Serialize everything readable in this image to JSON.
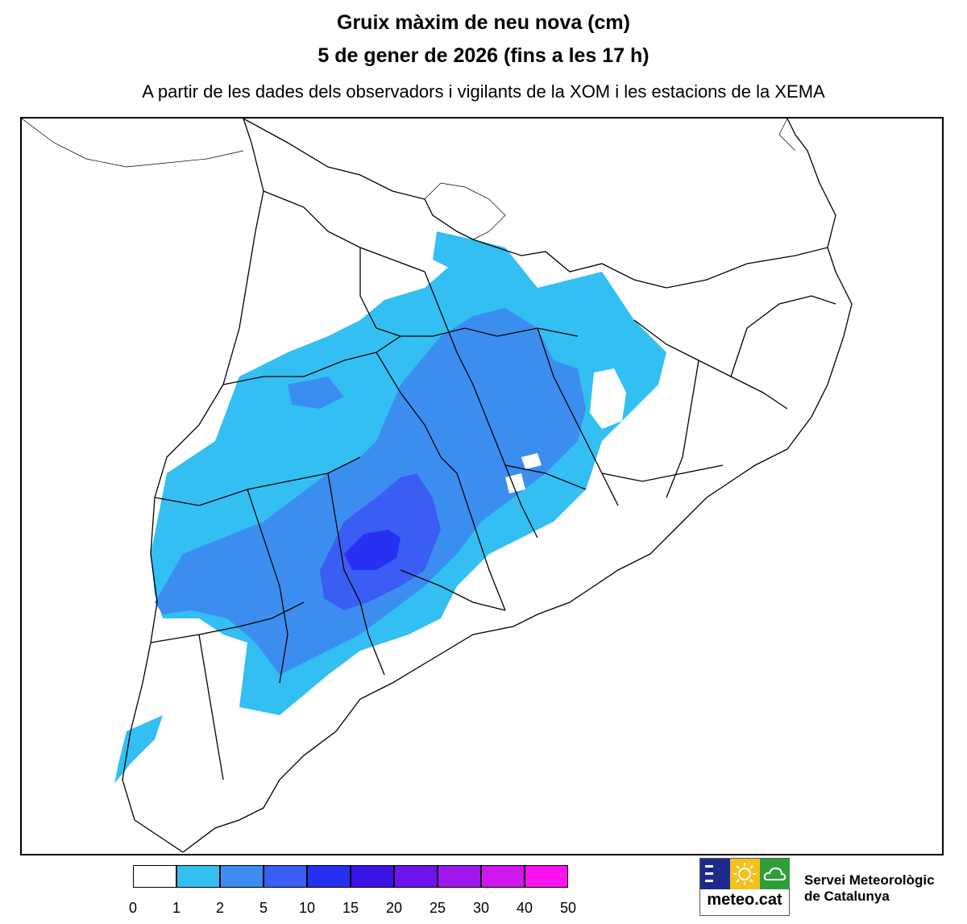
{
  "title_line1": "Gruix màxim de neu nova (cm)",
  "title_line2": "5 de gener de 2026 (fins a les 17 h)",
  "subtitle": "A partir de les dades dels observadors i vigilants de la XOM i les estacions de la XEMA",
  "legend": {
    "colors": [
      "#ffffff",
      "#33bff2",
      "#3b8ef0",
      "#3a5df3",
      "#2630f0",
      "#3a12e6",
      "#6d14ec",
      "#a016ee",
      "#d017ee",
      "#ff12f0"
    ],
    "ticks": [
      "0",
      "1",
      "2",
      "5",
      "10",
      "15",
      "20",
      "25",
      "30",
      "40",
      "50"
    ]
  },
  "logo": {
    "text": "meteo.cat",
    "panel_colors": [
      "#1d2a8c",
      "#f3c01c",
      "#2e9e3a"
    ],
    "icons": [
      "waves-icon",
      "sun-icon",
      "cloud-icon"
    ]
  },
  "organization": {
    "line1": "Servei Meteorològic",
    "line2": "de Catalunya"
  }
}
